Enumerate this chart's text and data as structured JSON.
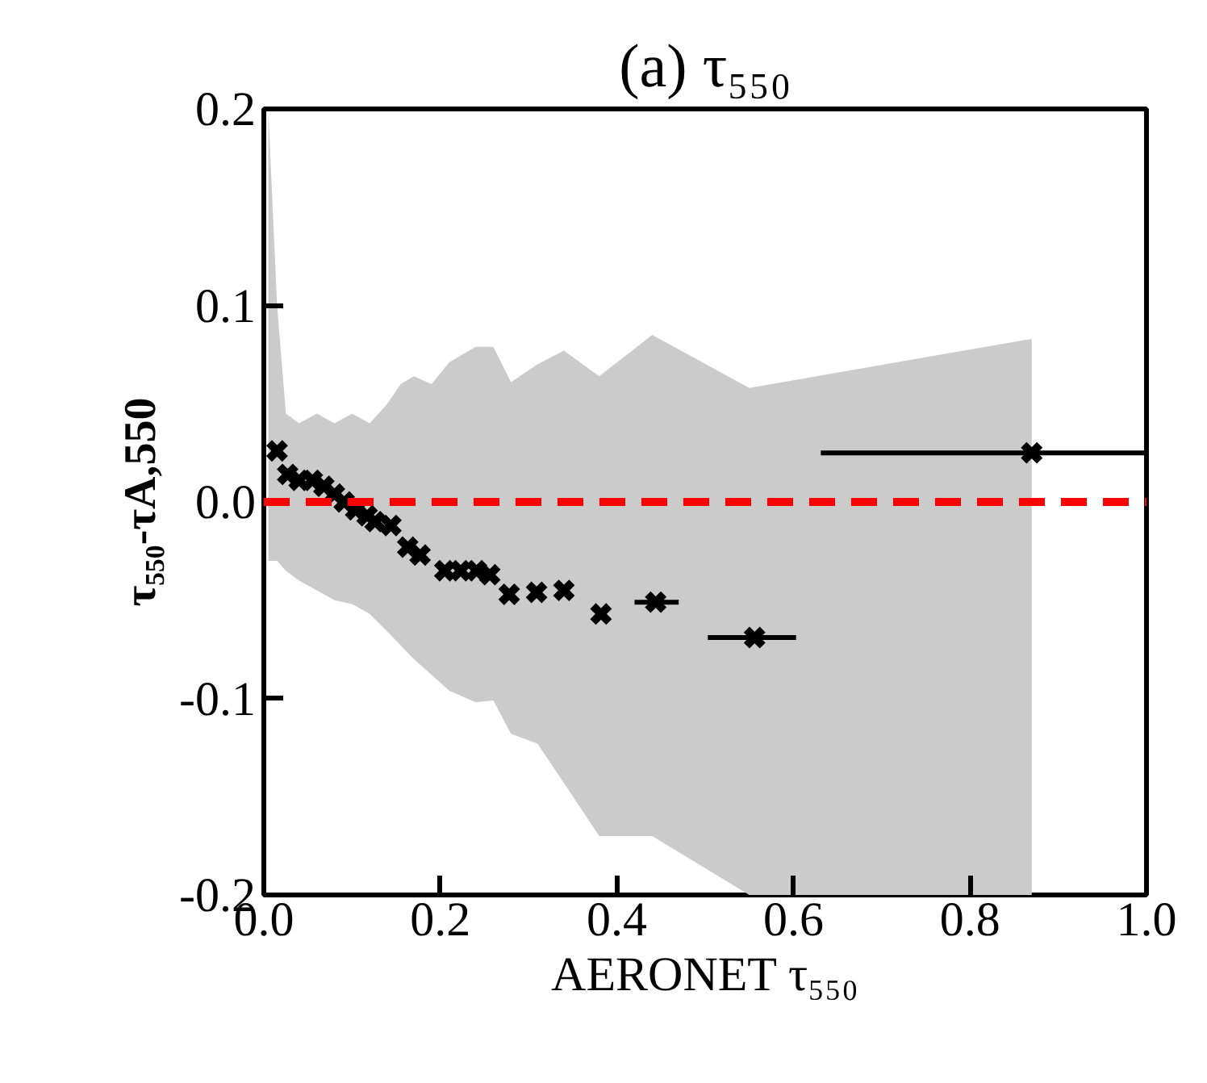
{
  "chart_data": {
    "type": "scatter",
    "title": "(a) τ₅₅₀",
    "xlabel": "AERONET τ₅₅₀",
    "ylabel": "τ₅₅₀-τA,550",
    "xlim": [
      0,
      1
    ],
    "ylim": [
      -0.2,
      0.2
    ],
    "xticks": [
      {
        "value": 0,
        "label": "0.0"
      },
      {
        "value": 0.2,
        "label": "0.2"
      },
      {
        "value": 0.4,
        "label": "0.4"
      },
      {
        "value": 0.6,
        "label": "0.6"
      },
      {
        "value": 0.8,
        "label": "0.8"
      },
      {
        "value": 1,
        "label": "1.0"
      }
    ],
    "yticks": [
      {
        "value": -0.2,
        "label": "-0.2"
      },
      {
        "value": -0.1,
        "label": "-0.1"
      },
      {
        "value": 0,
        "label": "0.0"
      },
      {
        "value": 0.1,
        "label": "0.1"
      },
      {
        "value": 0.2,
        "label": "0.2"
      }
    ],
    "grid": false,
    "marker": "cross",
    "ref_lines": [
      {
        "axis": "y",
        "value": 0,
        "color": "#ff0000",
        "line_style": "dashed"
      }
    ],
    "series": [
      {
        "type": "line",
        "color": "#cbcbcb",
        "x": [
          0.005,
          0.015,
          0.025,
          0.04,
          0.06,
          0.08,
          0.1,
          0.12,
          0.14,
          0.155,
          0.17,
          0.19,
          0.21,
          0.24,
          0.26,
          0.28,
          0.31,
          0.34,
          0.38,
          0.44,
          0.55,
          0.87
        ],
        "values": [
          null,
          null,
          null,
          null,
          null,
          null,
          null,
          null,
          null,
          null,
          null,
          null,
          null,
          null,
          null,
          null,
          null,
          null,
          null,
          null,
          null,
          null
        ],
        "upper": [
          0.2,
          0.1,
          0.045,
          0.04,
          0.045,
          0.04,
          0.045,
          0.04,
          0.05,
          0.06,
          0.064,
          0.06,
          0.071,
          0.079,
          0.079,
          0.061,
          0.07,
          0.077,
          0.064,
          0.085,
          0.058,
          0.083
        ],
        "lower": [
          -0.03,
          -0.03,
          -0.035,
          -0.04,
          -0.045,
          -0.05,
          -0.052,
          -0.057,
          -0.066,
          -0.073,
          -0.08,
          -0.088,
          -0.096,
          -0.102,
          -0.101,
          -0.118,
          -0.123,
          -0.143,
          -0.17,
          -0.17,
          -0.2,
          -0.2
        ]
      },
      {
        "color": "#000000",
        "x": [
          0.015,
          0.027,
          0.04,
          0.055,
          0.068,
          0.08,
          0.091,
          0.104,
          0.117,
          0.126,
          0.144,
          0.163,
          0.177,
          0.205,
          0.223,
          0.241,
          0.256,
          0.278,
          0.309,
          0.34,
          0.382,
          0.444,
          0.556,
          0.87
        ],
        "values": [
          0.026,
          0.014,
          0.011,
          0.011,
          0.008,
          0.004,
          0.0,
          -0.004,
          -0.007,
          -0.01,
          -0.012,
          -0.023,
          -0.027,
          -0.035,
          -0.035,
          -0.035,
          -0.037,
          -0.047,
          -0.046,
          -0.045,
          -0.057,
          -0.051,
          -0.069,
          0.025
        ],
        "xerrors": [
          null,
          null,
          null,
          null,
          null,
          null,
          null,
          null,
          null,
          null,
          null,
          null,
          null,
          null,
          null,
          null,
          null,
          null,
          null,
          null,
          null,
          [
            0.42,
            0.47
          ],
          [
            0.503,
            0.603
          ],
          [
            0.631,
            1.0
          ]
        ]
      }
    ]
  }
}
